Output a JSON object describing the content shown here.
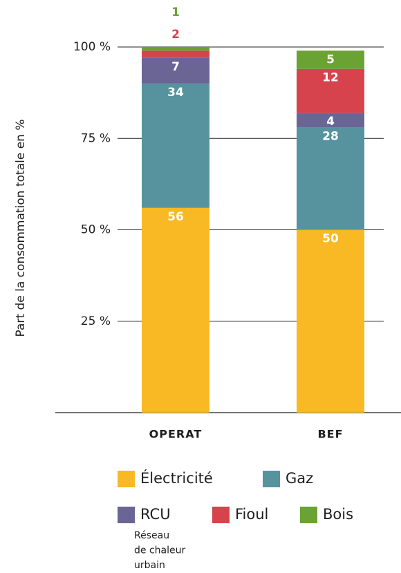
{
  "chart_data": {
    "type": "stacked_bar",
    "y_label": "Part de la consommation totale en %",
    "categories": [
      "OPERAT",
      "BEF"
    ],
    "series": [
      {
        "name": "Électricité",
        "color": "#f9b924",
        "values": [
          56,
          50
        ]
      },
      {
        "name": "Gaz",
        "color": "#56939f",
        "values": [
          34,
          28
        ]
      },
      {
        "name": "RCU",
        "color": "#6b6595",
        "values": [
          7,
          4
        ]
      },
      {
        "name": "Fioul",
        "color": "#d7434c",
        "values": [
          2,
          12
        ]
      },
      {
        "name": "Bois",
        "color": "#6aa233",
        "values": [
          1,
          5
        ]
      }
    ],
    "legend_note": [
      "Réseau",
      "de chaleur",
      "urbain"
    ],
    "ylim": [
      0,
      100
    ],
    "yticks": [
      {
        "value": 25,
        "label": "25 %"
      },
      {
        "value": 50,
        "label": "50 %"
      },
      {
        "value": 75,
        "label": "75 %"
      },
      {
        "value": 100,
        "label": "100 %"
      }
    ],
    "grid": true
  }
}
